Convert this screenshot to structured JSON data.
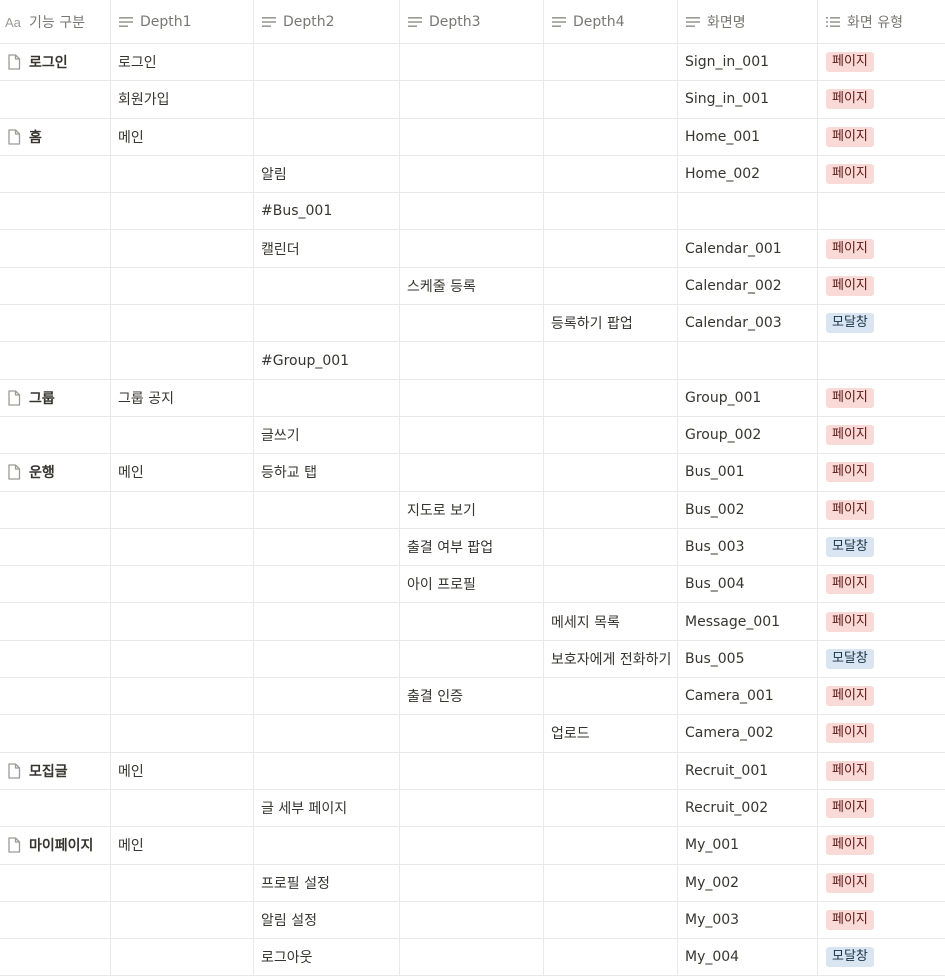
{
  "columns": [
    {
      "label": "기능 구분",
      "icon": "aa-title-icon"
    },
    {
      "label": "Depth1",
      "icon": "text-lines-icon"
    },
    {
      "label": "Depth2",
      "icon": "text-lines-icon"
    },
    {
      "label": "Depth3",
      "icon": "text-lines-icon"
    },
    {
      "label": "Depth4",
      "icon": "text-lines-icon"
    },
    {
      "label": "화면명",
      "icon": "text-lines-icon"
    },
    {
      "label": "화면 유형",
      "icon": "list-icon"
    }
  ],
  "colors": {
    "page_tag_bg": "#fadad7",
    "modal_tag_bg": "#d9e5f1"
  },
  "rows": [
    {
      "title": "로그인",
      "d1": "로그인",
      "d2": "",
      "d3": "",
      "d4": "",
      "screen": "Sign_in_001",
      "type": "페이지"
    },
    {
      "title": "",
      "d1": "회원가입",
      "d2": "",
      "d3": "",
      "d4": "",
      "screen": "Sing_in_001",
      "type": "페이지"
    },
    {
      "title": "홈",
      "d1": "메인",
      "d2": "",
      "d3": "",
      "d4": "",
      "screen": "Home_001",
      "type": "페이지"
    },
    {
      "title": "",
      "d1": "",
      "d2": "알림",
      "d3": "",
      "d4": "",
      "screen": "Home_002",
      "type": "페이지"
    },
    {
      "title": "",
      "d1": "",
      "d2": "#Bus_001",
      "d3": "",
      "d4": "",
      "screen": "",
      "type": ""
    },
    {
      "title": "",
      "d1": "",
      "d2": "캘린더",
      "d3": "",
      "d4": "",
      "screen": "Calendar_001",
      "type": "페이지"
    },
    {
      "title": "",
      "d1": "",
      "d2": "",
      "d3": "스케줄 등록",
      "d4": "",
      "screen": "Calendar_002",
      "type": "페이지"
    },
    {
      "title": "",
      "d1": "",
      "d2": "",
      "d3": "",
      "d4": "등록하기 팝업",
      "screen": "Calendar_003",
      "type": "모달창"
    },
    {
      "title": "",
      "d1": "",
      "d2": "#Group_001",
      "d3": "",
      "d4": "",
      "screen": "",
      "type": ""
    },
    {
      "title": "그룹",
      "d1": "그룹 공지",
      "d2": "",
      "d3": "",
      "d4": "",
      "screen": "Group_001",
      "type": "페이지"
    },
    {
      "title": "",
      "d1": "",
      "d2": "글쓰기",
      "d3": "",
      "d4": "",
      "screen": "Group_002",
      "type": "페이지"
    },
    {
      "title": "운행",
      "d1": "메인",
      "d2": "등하교 탭",
      "d3": "",
      "d4": "",
      "screen": "Bus_001",
      "type": "페이지"
    },
    {
      "title": "",
      "d1": "",
      "d2": "",
      "d3": "지도로 보기",
      "d4": "",
      "screen": "Bus_002",
      "type": "페이지"
    },
    {
      "title": "",
      "d1": "",
      "d2": "",
      "d3": "출결 여부 팝업",
      "d4": "",
      "screen": "Bus_003",
      "type": "모달창"
    },
    {
      "title": "",
      "d1": "",
      "d2": "",
      "d3": "아이 프로필",
      "d4": "",
      "screen": "Bus_004",
      "type": "페이지"
    },
    {
      "title": "",
      "d1": "",
      "d2": "",
      "d3": "",
      "d4": "메세지 목록",
      "screen": "Message_001",
      "type": "페이지"
    },
    {
      "title": "",
      "d1": "",
      "d2": "",
      "d3": "",
      "d4": "보호자에게 전화하기",
      "screen": "Bus_005",
      "type": "모달창"
    },
    {
      "title": "",
      "d1": "",
      "d2": "",
      "d3": "출결 인증",
      "d4": "",
      "screen": "Camera_001",
      "type": "페이지"
    },
    {
      "title": "",
      "d1": "",
      "d2": "",
      "d3": "",
      "d4": "업로드",
      "screen": "Camera_002",
      "type": "페이지"
    },
    {
      "title": "모집글",
      "d1": "메인",
      "d2": "",
      "d3": "",
      "d4": "",
      "screen": "Recruit_001",
      "type": "페이지"
    },
    {
      "title": "",
      "d1": "",
      "d2": "글 세부 페이지",
      "d3": "",
      "d4": "",
      "screen": "Recruit_002",
      "type": "페이지"
    },
    {
      "title": "마이페이지",
      "d1": "메인",
      "d2": "",
      "d3": "",
      "d4": "",
      "screen": "My_001",
      "type": "페이지"
    },
    {
      "title": "",
      "d1": "",
      "d2": "프로필 설정",
      "d3": "",
      "d4": "",
      "screen": "My_002",
      "type": "페이지"
    },
    {
      "title": "",
      "d1": "",
      "d2": "알림 설정",
      "d3": "",
      "d4": "",
      "screen": "My_003",
      "type": "페이지"
    },
    {
      "title": "",
      "d1": "",
      "d2": "로그아웃",
      "d3": "",
      "d4": "",
      "screen": "My_004",
      "type": "모달창"
    }
  ]
}
